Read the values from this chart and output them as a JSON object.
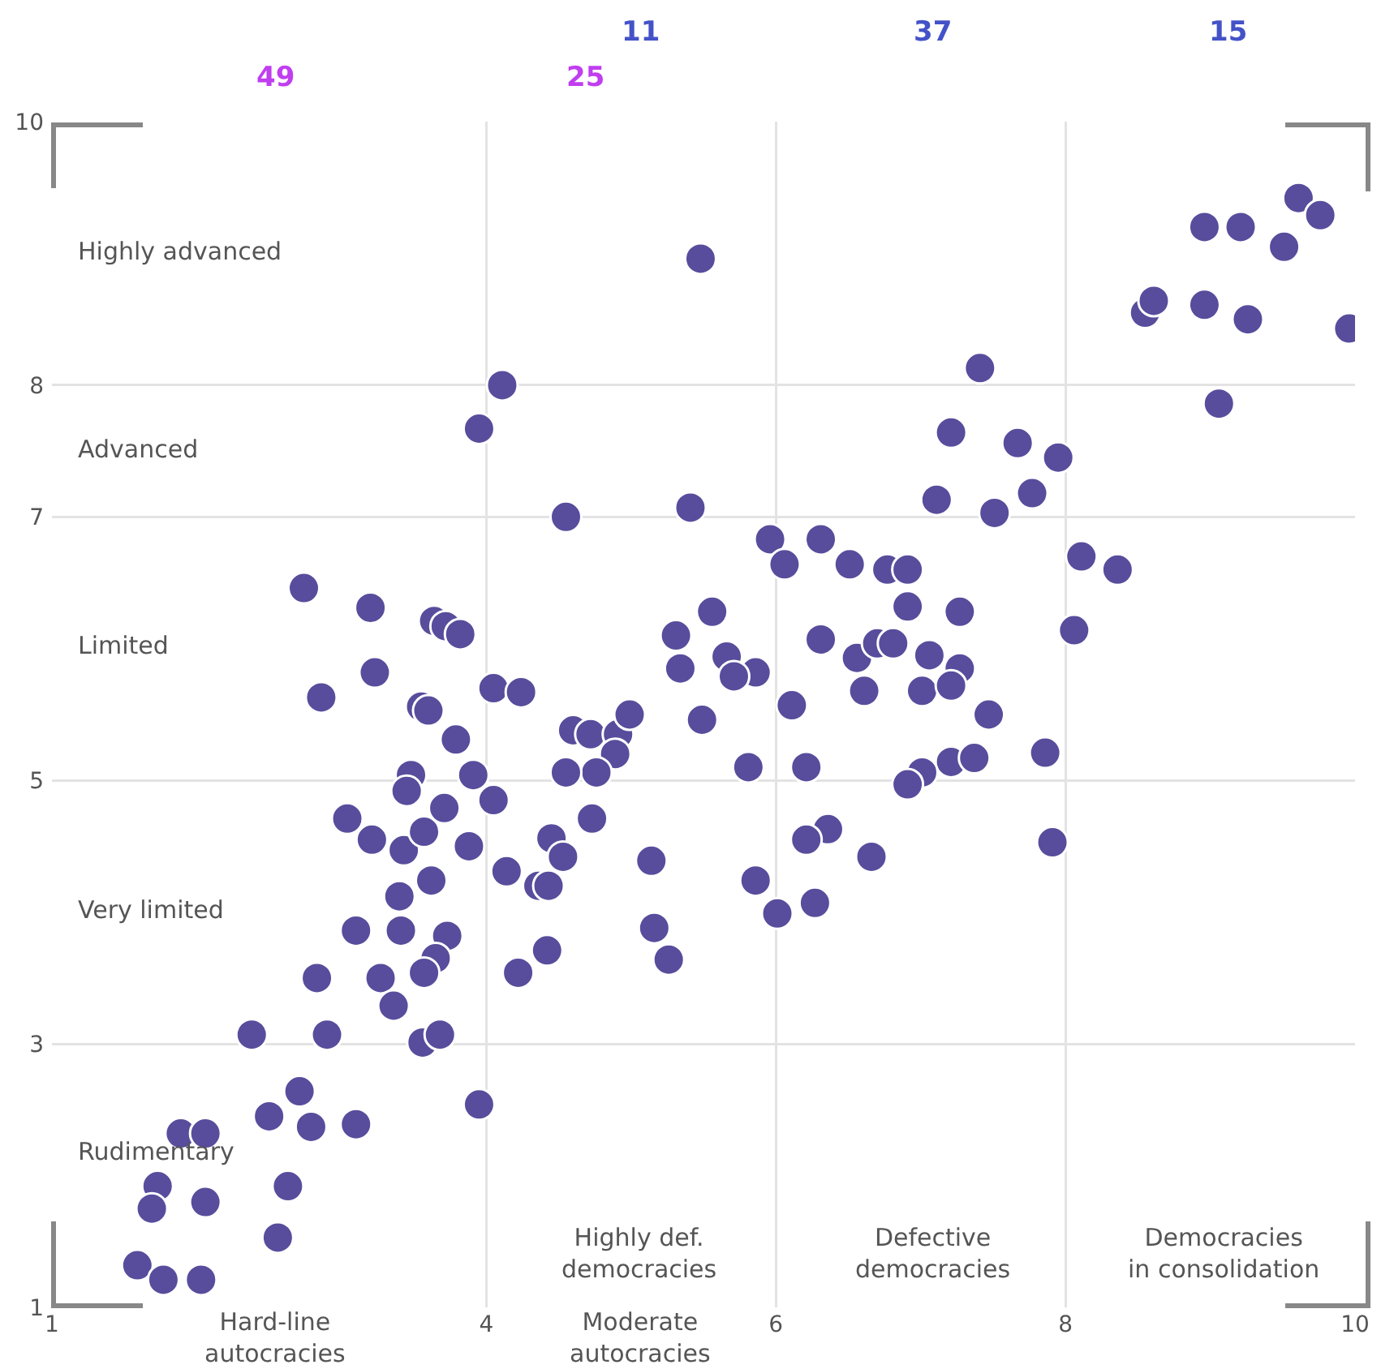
{
  "chart_data": {
    "type": "scatter",
    "color": "#574d9c",
    "marker": "circle",
    "grid": true,
    "xlim": [
      1,
      10
    ],
    "ylim": [
      1,
      10
    ],
    "xticks": [
      1,
      4,
      6,
      8,
      10
    ],
    "yticks": [
      1,
      3,
      5,
      7,
      8,
      10
    ],
    "annotations": [
      "49",
      "25",
      "11",
      "37",
      "15",
      "Highly advanced",
      "Advanced",
      "Limited",
      "Very limited",
      "Rudimentary",
      "Hard-line\nautocracies",
      "Moderate\nautocracies",
      "Highly def.\ndemocracies",
      "Defective\ndemocracies",
      "Democracies\nin consolidation"
    ],
    "x": [
      9.61,
      9.76,
      8.96,
      9.21,
      9.51,
      5.48,
      8.55,
      8.61,
      8.96,
      9.26,
      9.96,
      9.06,
      7.41,
      4.11,
      3.95,
      7.21,
      7.67,
      7.95,
      7.77,
      7.11,
      7.51,
      5.41,
      4.55,
      5.96,
      6.31,
      6.06,
      6.51,
      6.77,
      6.91,
      8.11,
      8.36,
      2.74,
      3.2,
      6.91,
      7.27,
      5.56,
      3.64,
      3.72,
      3.82,
      5.31,
      6.31,
      8.06,
      6.56,
      6.7,
      6.81,
      7.06,
      5.66,
      5.34,
      5.86,
      5.71,
      3.23,
      7.27,
      2.86,
      4.05,
      4.24,
      6.61,
      7.01,
      7.21,
      3.55,
      3.6,
      6.11,
      5.49,
      7.47,
      4.6,
      4.72,
      4.91,
      4.99,
      4.89,
      4.76,
      4.55,
      3.79,
      3.91,
      5.81,
      6.21,
      7.21,
      7.37,
      7.01,
      6.91,
      7.86,
      3.48,
      3.45,
      4.05,
      3.04,
      3.71,
      3.88,
      3.21,
      3.43,
      3.57,
      4.73,
      4.45,
      4.53,
      4.14,
      4.36,
      4.43,
      3.62,
      3.4,
      5.14,
      6.36,
      6.21,
      6.66,
      7.91,
      5.86,
      6.01,
      6.27,
      5.16,
      5.26,
      3.1,
      3.41,
      3.73,
      3.65,
      2.83,
      3.27,
      3.57,
      3.36,
      4.22,
      4.42,
      2.38,
      2.9,
      3.56,
      3.68,
      3.95,
      2.71,
      2.5,
      2.79,
      3.1,
      1.89,
      2.06,
      1.73,
      1.69,
      2.06,
      2.63,
      2.56,
      1.59,
      1.77,
      2.03
    ],
    "values": [
      9.42,
      9.29,
      9.2,
      9.2,
      9.05,
      8.96,
      8.55,
      8.64,
      8.61,
      8.5,
      8.43,
      7.86,
      8.13,
      8.0,
      7.67,
      7.64,
      7.56,
      7.45,
      7.18,
      7.13,
      7.03,
      7.07,
      7.0,
      6.83,
      6.83,
      6.64,
      6.64,
      6.6,
      6.6,
      6.7,
      6.6,
      6.46,
      6.31,
      6.32,
      6.28,
      6.28,
      6.21,
      6.17,
      6.11,
      6.1,
      6.07,
      6.14,
      5.93,
      6.04,
      6.04,
      5.95,
      5.94,
      5.85,
      5.82,
      5.79,
      5.82,
      5.85,
      5.63,
      5.7,
      5.67,
      5.68,
      5.68,
      5.72,
      5.56,
      5.53,
      5.57,
      5.46,
      5.5,
      5.38,
      5.35,
      5.35,
      5.5,
      5.2,
      5.06,
      5.06,
      5.31,
      5.04,
      5.1,
      5.1,
      5.14,
      5.17,
      5.06,
      4.97,
      5.21,
      5.04,
      4.92,
      4.85,
      4.71,
      4.79,
      4.5,
      4.55,
      4.47,
      4.61,
      4.71,
      4.56,
      4.42,
      4.31,
      4.2,
      4.2,
      4.24,
      4.12,
      4.39,
      4.63,
      4.55,
      4.42,
      4.53,
      4.24,
      3.99,
      4.07,
      3.88,
      3.64,
      3.86,
      3.86,
      3.82,
      3.65,
      3.5,
      3.5,
      3.54,
      3.29,
      3.54,
      3.71,
      3.07,
      3.07,
      3.01,
      3.07,
      2.54,
      2.64,
      2.45,
      2.37,
      2.39,
      2.32,
      2.32,
      1.92,
      1.75,
      1.8,
      1.92,
      1.53,
      1.32,
      1.21,
      1.21
    ]
  }
}
